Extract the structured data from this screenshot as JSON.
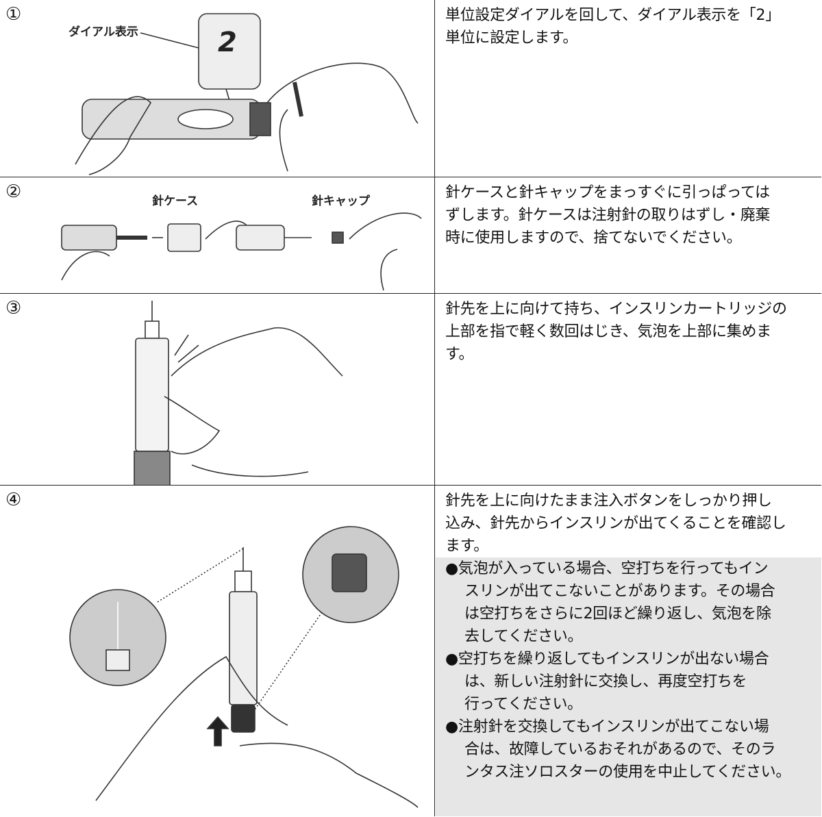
{
  "steps": [
    {
      "number": "①",
      "labels": [
        "ダイアル表示"
      ],
      "lines": [
        "単位設定ダイアルを回して、ダイアル表示を「2」",
        "単位に設定します。"
      ]
    },
    {
      "number": "②",
      "labels": [
        "針ケース",
        "針キャップ"
      ],
      "lines": [
        "針ケースと針キャップをまっすぐに引っぱっては",
        "ずします。針ケースは注射針の取りはずし・廃棄",
        "時に使用しますので、捨てないでください。"
      ]
    },
    {
      "number": "③",
      "labels": [],
      "lines": [
        "針先を上に向けて持ち、インスリンカートリッジの",
        "上部を指で軽く数回はじき、気泡を上部に集めま",
        "す。"
      ]
    },
    {
      "number": "④",
      "labels": [],
      "lines": [
        "針先を上に向けたまま注入ボタンをしっかり押し",
        "込み、針先からインスリンが出てくることを確認し",
        "ます。"
      ],
      "notes": [
        [
          "●気泡が入っている場合、空打ちを行ってもイン",
          "スリンが出てこないことがあります。その場合",
          "は空打ちをさらに2回ほど繰り返し、気泡を除",
          "去してください。"
        ],
        [
          "●空打ちを繰り返してもインスリンが出ない場合",
          "は、新しい注射針に交換し、再度空打ちを",
          "行ってください。"
        ],
        [
          "●注射針を交換してもインスリンが出てこない場",
          "合は、故障しているおそれがあるので、そのラ",
          "ンタス注ソロスターの使用を中止してください。"
        ]
      ]
    }
  ]
}
